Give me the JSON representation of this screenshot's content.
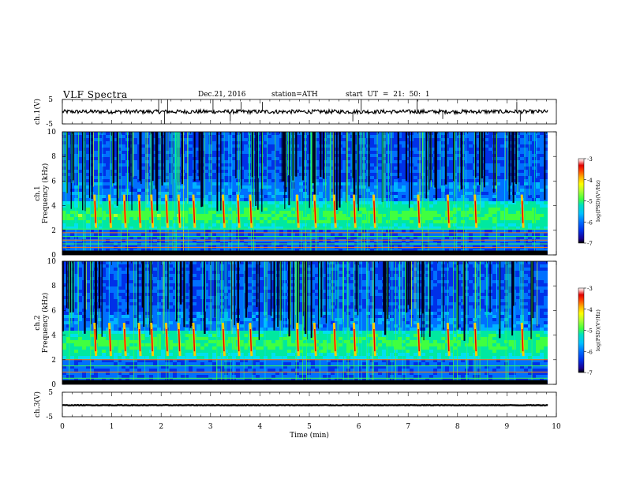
{
  "header": {
    "title": "VLF  Spectra",
    "date": "Dec.21, 2016",
    "station": "station=ATH",
    "start_ut": "start  UT  =    21: 50: 1"
  },
  "chart_data": [
    {
      "type": "line",
      "panel": "waveform-ch1",
      "ylabel": "ch.1(V)",
      "ylim": [
        -5,
        5
      ],
      "yticks": [
        "5",
        "-5"
      ],
      "xlim": [
        0,
        10
      ],
      "data_extent_min": 9.82,
      "baseline": 0,
      "noise_amplitude": 0.8,
      "spikes_min": [
        1.95,
        2.07,
        2.13,
        3.05,
        3.4,
        3.62,
        4.05,
        5.88,
        6.05,
        7.18,
        7.7,
        9.2,
        9.27
      ],
      "spike_heights_v": [
        5,
        -5,
        5,
        5,
        -4,
        4,
        4,
        -4,
        5,
        5,
        -3,
        4,
        -4
      ]
    },
    {
      "type": "heatmap",
      "panel": "spectrogram-ch1",
      "ylabel": "ch.1\nFrequency  (kHz)",
      "ylim": [
        0,
        10
      ],
      "yticks": [
        "10",
        "8",
        "6",
        "4",
        "2",
        "0"
      ],
      "xlim": [
        0,
        10
      ],
      "data_extent_min": 9.82,
      "colorbar": {
        "label": "log(PSD)(V²/Hz)",
        "range": [
          -7,
          -3
        ],
        "ticks": [
          "-3",
          "-4",
          "-5",
          "-6",
          "-7"
        ]
      },
      "emission_band_khz": [
        2.2,
        4.5
      ],
      "narrowband_lines_khz": [
        0.3,
        0.6,
        0.9,
        1.2,
        1.5,
        1.8,
        2.1
      ],
      "bursts_min": [
        0.65,
        0.95,
        1.25,
        1.55,
        1.8,
        2.1,
        2.35,
        2.65,
        3.25,
        3.55,
        3.8,
        4.75,
        5.1,
        5.5,
        5.9,
        6.3,
        7.2,
        7.8,
        8.35,
        9.3
      ]
    },
    {
      "type": "heatmap",
      "panel": "spectrogram-ch2",
      "ylabel": "ch.2\nFrequency  (kHz)",
      "ylim": [
        0,
        10
      ],
      "yticks": [
        "10",
        "8",
        "6",
        "4",
        "2",
        "0"
      ],
      "xlim": [
        0,
        10
      ],
      "data_extent_min": 9.82,
      "colorbar": {
        "label": "log(PSD)(V²/Hz)",
        "range": [
          -7,
          -3
        ],
        "ticks": [
          "-3",
          "-4",
          "-5",
          "-6",
          "-7"
        ]
      },
      "emission_band_khz": [
        2.3,
        4.6
      ],
      "narrowband_lines_khz": [
        0.5,
        1.0,
        1.5,
        2.0
      ],
      "bursts_min": [
        0.65,
        0.95,
        1.25,
        1.55,
        1.8,
        2.1,
        2.35,
        2.65,
        3.25,
        3.55,
        3.8,
        4.75,
        5.1,
        5.5,
        5.9,
        6.3,
        7.2,
        7.8,
        8.35,
        9.3
      ]
    },
    {
      "type": "line",
      "panel": "waveform-ch3",
      "ylabel": "ch.3(V)",
      "ylim": [
        -5,
        5
      ],
      "yticks": [
        "5",
        "-5"
      ],
      "xlim": [
        0,
        10
      ],
      "data_extent_min": 9.82,
      "baseline": -0.3,
      "noise_amplitude": 0.12,
      "xlabel": "Time  (min)",
      "xticks": [
        "0",
        "1",
        "2",
        "3",
        "4",
        "5",
        "6",
        "7",
        "8",
        "9",
        "10"
      ]
    }
  ],
  "colormap": [
    "#000000",
    "#1a0090",
    "#0030e8",
    "#0070ff",
    "#00b4ff",
    "#00e0f0",
    "#00e8a0",
    "#40ff40",
    "#b0ff30",
    "#ffff00",
    "#ffb000",
    "#ff4000",
    "#e00000",
    "#ffffff"
  ]
}
